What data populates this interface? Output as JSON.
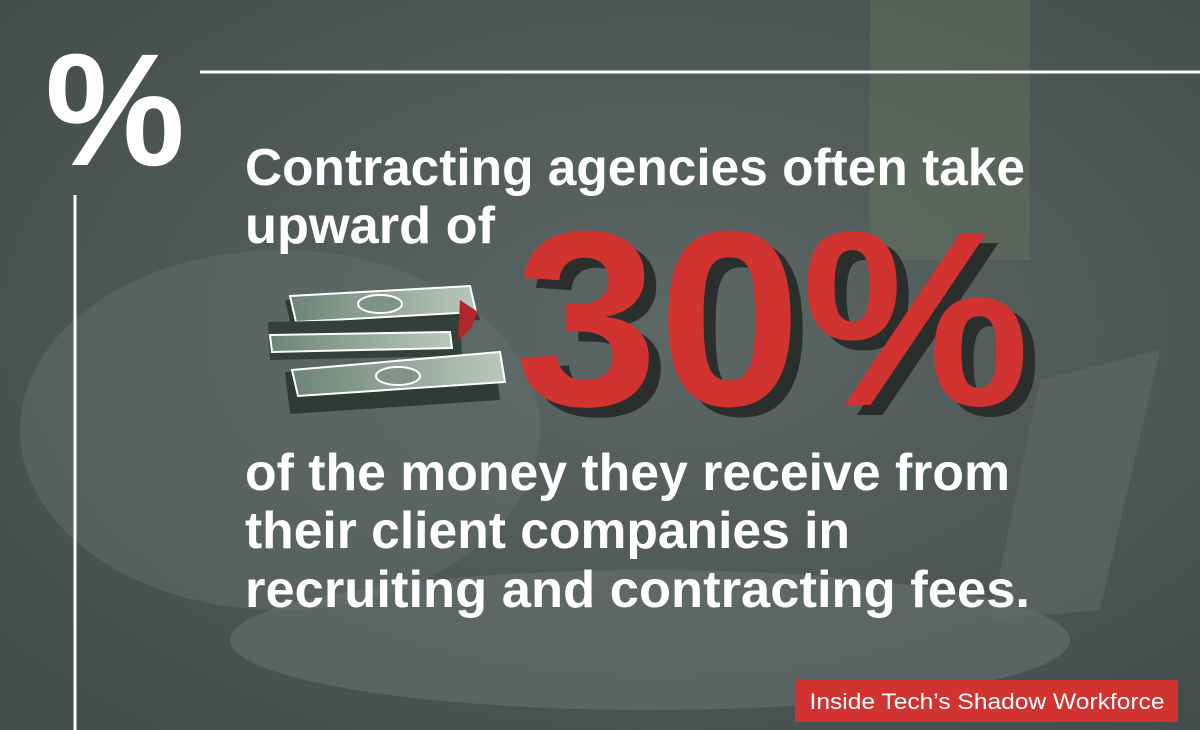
{
  "icon": "%",
  "headline": {
    "line1": "Contracting agencies often take",
    "line2": "upward of"
  },
  "highlight": "30%",
  "body": {
    "line1": "of the money they receive from",
    "line2": "their client companies in",
    "line3": "recruiting and contracting fees."
  },
  "badge": "Inside Tech’s Shadow Workforce"
}
